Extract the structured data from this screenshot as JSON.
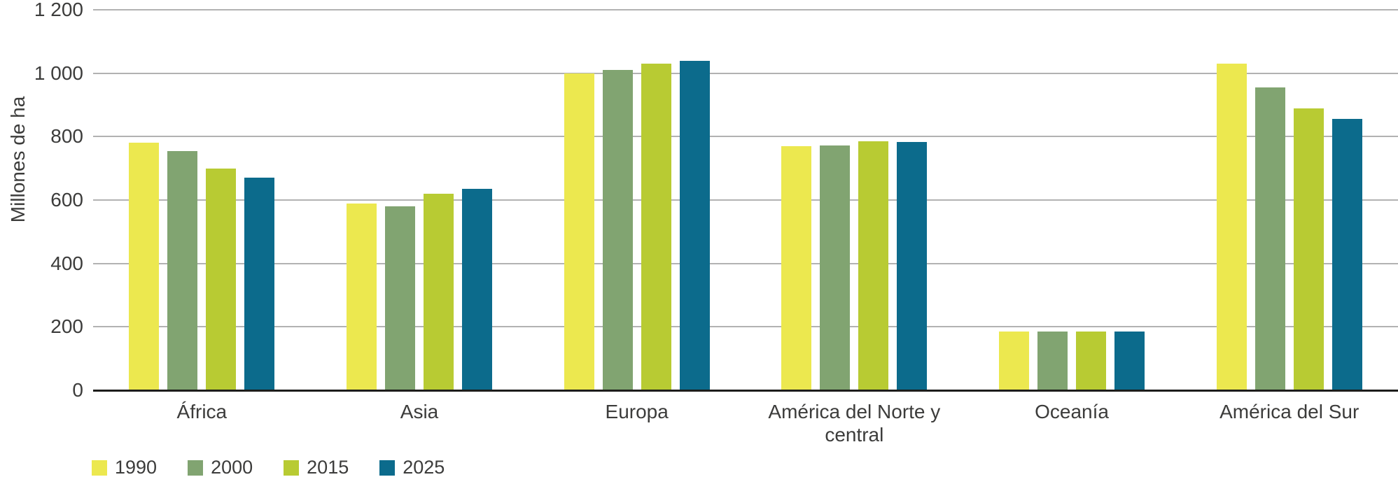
{
  "chart_data": {
    "type": "bar",
    "title": "",
    "ylabel": "Millones de ha",
    "xlabel": "",
    "ylim": [
      0,
      1200
    ],
    "grid": true,
    "legend_position": "bottom-left",
    "yticks": [
      {
        "value": 1200,
        "label": "1 200"
      },
      {
        "value": 1000,
        "label": "1 000"
      },
      {
        "value": 800,
        "label": "800"
      },
      {
        "value": 600,
        "label": "600"
      },
      {
        "value": 400,
        "label": "400"
      },
      {
        "value": 200,
        "label": "200"
      },
      {
        "value": 0,
        "label": "0"
      }
    ],
    "categories": [
      "África",
      "Asia",
      "Europa",
      "América del Norte y central",
      "Oceanía",
      "América del Sur"
    ],
    "series": [
      {
        "name": "1990",
        "color": "#ECE84F",
        "values": [
          780,
          590,
          1000,
          770,
          185,
          1030
        ]
      },
      {
        "name": "2000",
        "color": "#81A471",
        "values": [
          755,
          580,
          1010,
          772,
          185,
          955
        ]
      },
      {
        "name": "2015",
        "color": "#B8CB33",
        "values": [
          700,
          620,
          1030,
          785,
          185,
          890
        ]
      },
      {
        "name": "2025",
        "color": "#0C6B8C",
        "values": [
          670,
          635,
          1040,
          783,
          185,
          855
        ]
      }
    ],
    "colors": {
      "gridline": "#B2B2B2",
      "axis_line": "#1D1D1B",
      "text": "#3C3C3B",
      "background": "#FFFFFF"
    }
  }
}
